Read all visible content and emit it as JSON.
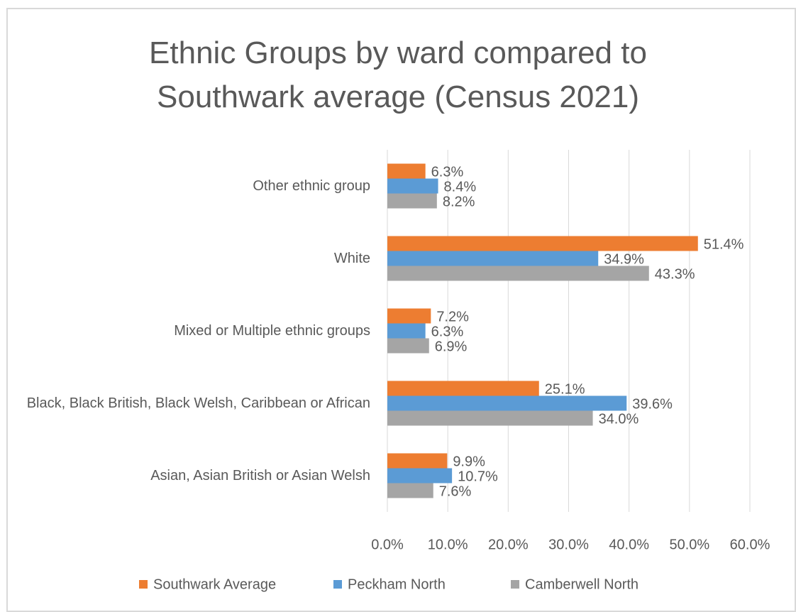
{
  "chart_data": {
    "type": "hbar",
    "title": "Ethnic Groups by ward compared to Southwark average (Census 2021)",
    "categories": [
      "Asian, Asian British or Asian Welsh",
      "Black, Black British, Black Welsh, Caribbean or African",
      "Mixed or Multiple ethnic groups",
      "White",
      "Other ethnic group"
    ],
    "series": [
      {
        "name": "Southwark Average",
        "color": "#ed7d31",
        "values": [
          9.9,
          25.1,
          7.2,
          51.4,
          6.3
        ],
        "value_labels": [
          "9.9%",
          "25.1%",
          "7.2%",
          "51.4%",
          "6.3%"
        ]
      },
      {
        "name": "Peckham North",
        "color": "#5b9bd5",
        "values": [
          10.7,
          39.6,
          6.3,
          34.9,
          8.4
        ],
        "value_labels": [
          "10.7%",
          "39.6%",
          "6.3%",
          "34.9%",
          "8.4%"
        ]
      },
      {
        "name": "Camberwell North",
        "color": "#a5a5a5",
        "values": [
          7.6,
          34,
          6.9,
          43.3,
          8.2
        ],
        "value_labels": [
          "7.6%",
          "34.0%",
          "6.9%",
          "43.3%",
          "8.2%"
        ]
      }
    ],
    "xlim": [
      0,
      60
    ],
    "xticks": [
      {
        "value": 0,
        "label": "0.0%"
      },
      {
        "value": 10,
        "label": "10.0%"
      },
      {
        "value": 20,
        "label": "20.0%"
      },
      {
        "value": 30,
        "label": "30.0%"
      },
      {
        "value": 40,
        "label": "40.0%"
      },
      {
        "value": 50,
        "label": "50.0%"
      },
      {
        "value": 60,
        "label": "60.0%"
      }
    ],
    "grid": true,
    "legend": "bottom"
  }
}
